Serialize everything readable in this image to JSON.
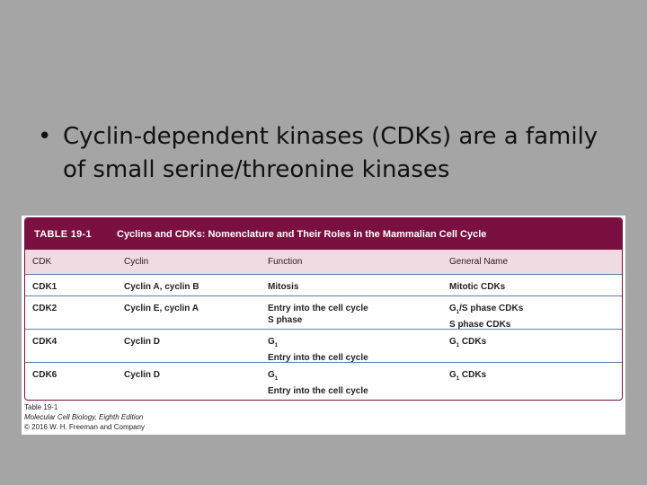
{
  "slide": {
    "bullet_mark": "•",
    "bullet_text": "Cyclin-dependent kinases (CDKs) are a family of small serine/threonine kinases"
  },
  "table": {
    "number": "TABLE 19-1",
    "title": "Cyclins and CDKs: Nomenclature and Their Roles in the Mammalian Cell Cycle",
    "headers": [
      "CDK",
      "Cyclin",
      "Function",
      "General Name"
    ],
    "rows": [
      {
        "cdk": "CDK1",
        "cyclin": "Cyclin A, cyclin B",
        "function": [
          "Mitosis"
        ],
        "general_name": [
          "Mitotic CDKs"
        ]
      },
      {
        "cdk": "CDK2",
        "cyclin": "Cyclin E, cyclin A",
        "function": [
          "Entry into the cell cycle",
          "S phase"
        ],
        "general_name": [
          "G1/S phase CDKs",
          "S phase CDKs"
        ]
      },
      {
        "cdk": "CDK4",
        "cyclin": "Cyclin D",
        "function": [
          "G1",
          "Entry into the cell cycle"
        ],
        "general_name": [
          "G1 CDKs"
        ]
      },
      {
        "cdk": "CDK6",
        "cyclin": "Cyclin D",
        "function": [
          "G1",
          "Entry into the cell cycle"
        ],
        "general_name": [
          "G1 CDKs"
        ]
      }
    ],
    "caption": [
      "Table 19-1",
      "Molecular Cell Biology, Eighth Edition",
      "© 2016 W. H. Freeman and Company"
    ]
  },
  "colors": {
    "background": "#a5a5a5",
    "header_bar": "#7a1040",
    "column_header": "#f1dbe3",
    "row_rule": "#5f7f9e"
  }
}
